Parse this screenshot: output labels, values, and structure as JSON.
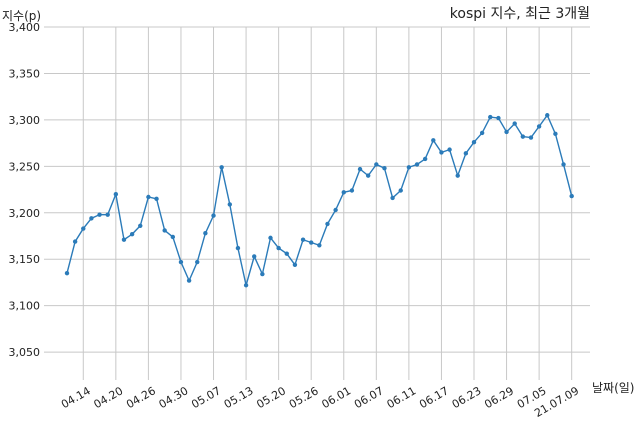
{
  "chart_data": {
    "type": "line",
    "title": "kospi 지수, 최근 3개월",
    "ylabel": "지수(p)",
    "xlabel": "날짜(일)",
    "ylim": [
      3020,
      3400
    ],
    "yticks": [
      3050,
      3100,
      3150,
      3200,
      3250,
      3300,
      3350,
      3400
    ],
    "ytick_labels": [
      "3,050",
      "3,100",
      "3,150",
      "3,200",
      "3,250",
      "3,300",
      "3,350",
      "3,400"
    ],
    "xtick_labels": [
      "04.14",
      "04.20",
      "04.26",
      "04.30",
      "05.07",
      "05.13",
      "05.20",
      "05.26",
      "06.01",
      "06.07",
      "06.11",
      "06.17",
      "06.23",
      "06.29",
      "07.05",
      "21.07.09"
    ],
    "xtick_indices": [
      2,
      6,
      10,
      14,
      18,
      22,
      26,
      30,
      34,
      38,
      42,
      46,
      50,
      54,
      58,
      62
    ],
    "grid": true,
    "series_color": "#2b7bb9",
    "series": [
      {
        "values": [
          3135,
          3169,
          3183,
          3194,
          3198,
          3198,
          3220,
          3171,
          3177,
          3186,
          3217,
          3215,
          3181,
          3174,
          3147,
          3127,
          3147,
          3178,
          3197,
          3249,
          3209,
          3162,
          3122,
          3153,
          3134,
          3173,
          3162,
          3156,
          3144,
          3171,
          3168,
          3165,
          3188,
          3203,
          3222,
          3224,
          3247,
          3240,
          3252,
          3248,
          3216,
          3224,
          3249,
          3252,
          3258,
          3278,
          3265,
          3268,
          3240,
          3264,
          3276,
          3286,
          3303,
          3302,
          3287,
          3296,
          3282,
          3281,
          3293,
          3305,
          3285,
          3252,
          3218
        ]
      }
    ]
  }
}
